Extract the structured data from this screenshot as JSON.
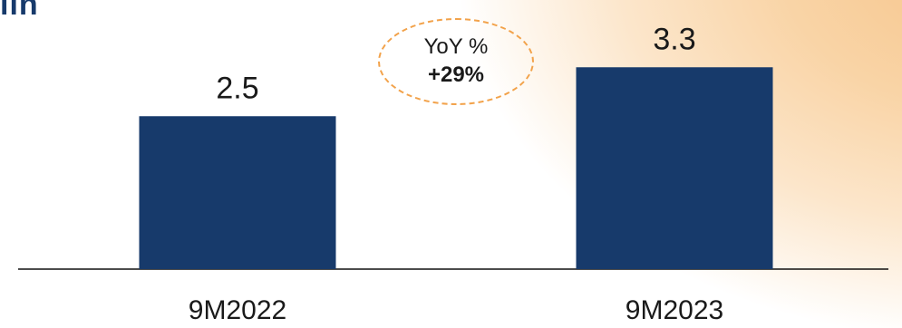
{
  "unit_label": "lln",
  "yoy": {
    "title": "YoY %",
    "value": "+29%"
  },
  "chart_data": {
    "type": "bar",
    "categories": [
      "9M2022",
      "9M2023"
    ],
    "values": [
      2.5,
      3.3
    ],
    "data_labels": [
      "2.5",
      "3.3"
    ],
    "ylim": [
      0,
      4.0
    ],
    "grid": false,
    "axis_y_visible": false,
    "bar_color": "#173a6b"
  },
  "colors": {
    "bar": "#173a6b",
    "accent_dashed": "#f2a24a",
    "background_glow": "#f7c48a"
  }
}
